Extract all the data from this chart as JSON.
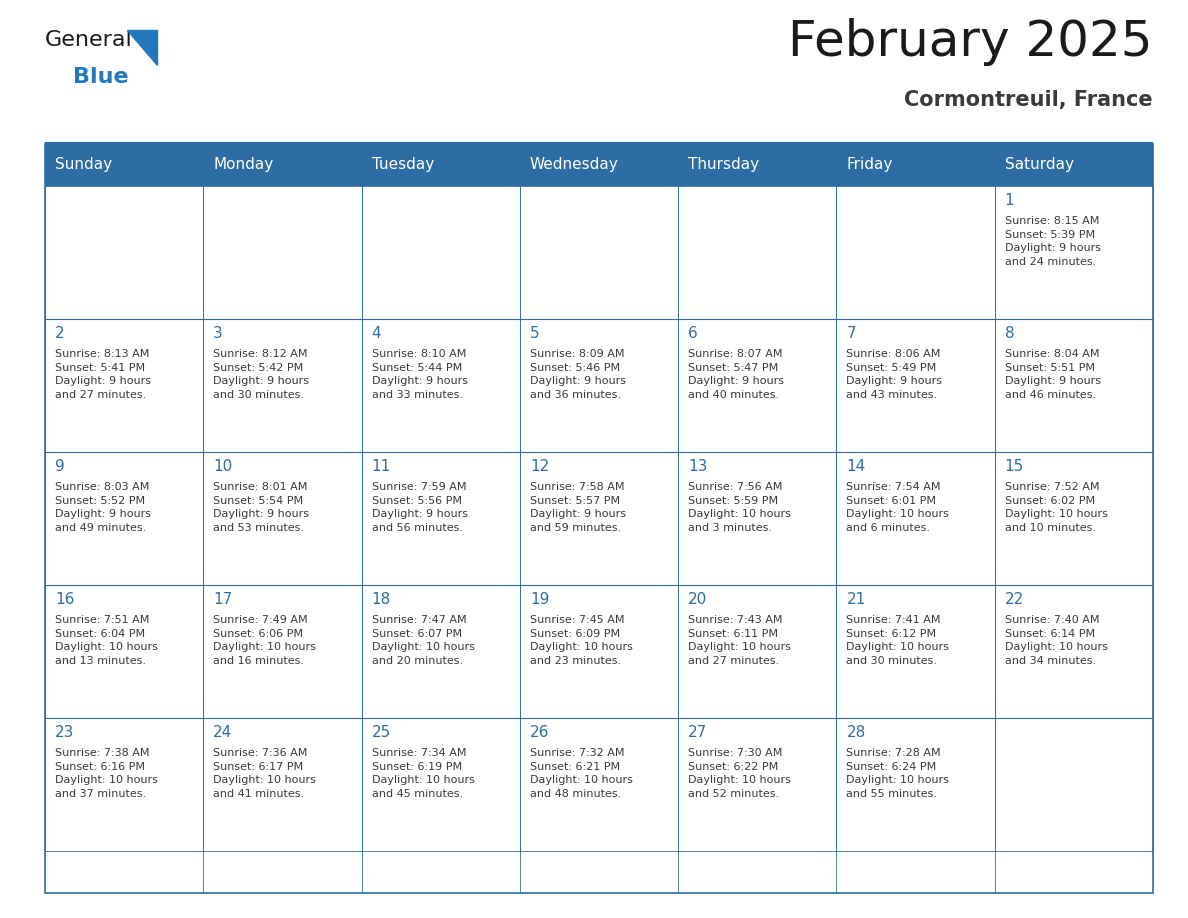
{
  "title": "February 2025",
  "subtitle": "Cormontreuil, France",
  "header_bg_color": "#2E6DA4",
  "header_text_color": "#FFFFFF",
  "border_color": "#2E6DA4",
  "text_color": "#3a3a3a",
  "day_number_color": "#2E6DA4",
  "day_headers": [
    "Sunday",
    "Monday",
    "Tuesday",
    "Wednesday",
    "Thursday",
    "Friday",
    "Saturday"
  ],
  "calendar_data": [
    [
      {
        "day": "",
        "info": ""
      },
      {
        "day": "",
        "info": ""
      },
      {
        "day": "",
        "info": ""
      },
      {
        "day": "",
        "info": ""
      },
      {
        "day": "",
        "info": ""
      },
      {
        "day": "",
        "info": ""
      },
      {
        "day": "1",
        "info": "Sunrise: 8:15 AM\nSunset: 5:39 PM\nDaylight: 9 hours\nand 24 minutes."
      }
    ],
    [
      {
        "day": "2",
        "info": "Sunrise: 8:13 AM\nSunset: 5:41 PM\nDaylight: 9 hours\nand 27 minutes."
      },
      {
        "day": "3",
        "info": "Sunrise: 8:12 AM\nSunset: 5:42 PM\nDaylight: 9 hours\nand 30 minutes."
      },
      {
        "day": "4",
        "info": "Sunrise: 8:10 AM\nSunset: 5:44 PM\nDaylight: 9 hours\nand 33 minutes."
      },
      {
        "day": "5",
        "info": "Sunrise: 8:09 AM\nSunset: 5:46 PM\nDaylight: 9 hours\nand 36 minutes."
      },
      {
        "day": "6",
        "info": "Sunrise: 8:07 AM\nSunset: 5:47 PM\nDaylight: 9 hours\nand 40 minutes."
      },
      {
        "day": "7",
        "info": "Sunrise: 8:06 AM\nSunset: 5:49 PM\nDaylight: 9 hours\nand 43 minutes."
      },
      {
        "day": "8",
        "info": "Sunrise: 8:04 AM\nSunset: 5:51 PM\nDaylight: 9 hours\nand 46 minutes."
      }
    ],
    [
      {
        "day": "9",
        "info": "Sunrise: 8:03 AM\nSunset: 5:52 PM\nDaylight: 9 hours\nand 49 minutes."
      },
      {
        "day": "10",
        "info": "Sunrise: 8:01 AM\nSunset: 5:54 PM\nDaylight: 9 hours\nand 53 minutes."
      },
      {
        "day": "11",
        "info": "Sunrise: 7:59 AM\nSunset: 5:56 PM\nDaylight: 9 hours\nand 56 minutes."
      },
      {
        "day": "12",
        "info": "Sunrise: 7:58 AM\nSunset: 5:57 PM\nDaylight: 9 hours\nand 59 minutes."
      },
      {
        "day": "13",
        "info": "Sunrise: 7:56 AM\nSunset: 5:59 PM\nDaylight: 10 hours\nand 3 minutes."
      },
      {
        "day": "14",
        "info": "Sunrise: 7:54 AM\nSunset: 6:01 PM\nDaylight: 10 hours\nand 6 minutes."
      },
      {
        "day": "15",
        "info": "Sunrise: 7:52 AM\nSunset: 6:02 PM\nDaylight: 10 hours\nand 10 minutes."
      }
    ],
    [
      {
        "day": "16",
        "info": "Sunrise: 7:51 AM\nSunset: 6:04 PM\nDaylight: 10 hours\nand 13 minutes."
      },
      {
        "day": "17",
        "info": "Sunrise: 7:49 AM\nSunset: 6:06 PM\nDaylight: 10 hours\nand 16 minutes."
      },
      {
        "day": "18",
        "info": "Sunrise: 7:47 AM\nSunset: 6:07 PM\nDaylight: 10 hours\nand 20 minutes."
      },
      {
        "day": "19",
        "info": "Sunrise: 7:45 AM\nSunset: 6:09 PM\nDaylight: 10 hours\nand 23 minutes."
      },
      {
        "day": "20",
        "info": "Sunrise: 7:43 AM\nSunset: 6:11 PM\nDaylight: 10 hours\nand 27 minutes."
      },
      {
        "day": "21",
        "info": "Sunrise: 7:41 AM\nSunset: 6:12 PM\nDaylight: 10 hours\nand 30 minutes."
      },
      {
        "day": "22",
        "info": "Sunrise: 7:40 AM\nSunset: 6:14 PM\nDaylight: 10 hours\nand 34 minutes."
      }
    ],
    [
      {
        "day": "23",
        "info": "Sunrise: 7:38 AM\nSunset: 6:16 PM\nDaylight: 10 hours\nand 37 minutes."
      },
      {
        "day": "24",
        "info": "Sunrise: 7:36 AM\nSunset: 6:17 PM\nDaylight: 10 hours\nand 41 minutes."
      },
      {
        "day": "25",
        "info": "Sunrise: 7:34 AM\nSunset: 6:19 PM\nDaylight: 10 hours\nand 45 minutes."
      },
      {
        "day": "26",
        "info": "Sunrise: 7:32 AM\nSunset: 6:21 PM\nDaylight: 10 hours\nand 48 minutes."
      },
      {
        "day": "27",
        "info": "Sunrise: 7:30 AM\nSunset: 6:22 PM\nDaylight: 10 hours\nand 52 minutes."
      },
      {
        "day": "28",
        "info": "Sunrise: 7:28 AM\nSunset: 6:24 PM\nDaylight: 10 hours\nand 55 minutes."
      },
      {
        "day": "",
        "info": ""
      }
    ]
  ],
  "logo_general_color": "#1a1a1a",
  "logo_blue_color": "#2278bd",
  "logo_triangle_color": "#2278bd",
  "title_fontsize": 36,
  "subtitle_fontsize": 15,
  "header_fontsize": 11,
  "day_num_fontsize": 11,
  "info_fontsize": 8
}
